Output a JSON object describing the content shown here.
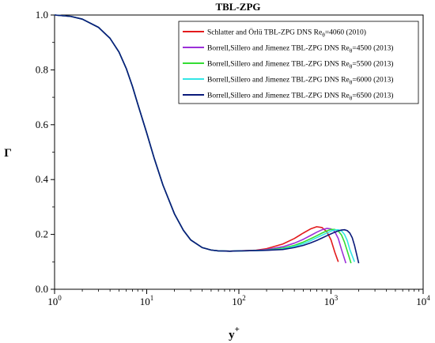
{
  "chart_data": {
    "type": "line",
    "title": "TBL-ZPG",
    "xlabel": "y",
    "xlabel_sup": "+",
    "ylabel": "Γ",
    "xscale": "log",
    "xlim": [
      1,
      10000
    ],
    "ylim": [
      0.0,
      1.0
    ],
    "x_tick_labels": [
      {
        "base": "10",
        "exp": "0"
      },
      {
        "base": "10",
        "exp": "1"
      },
      {
        "base": "10",
        "exp": "2"
      },
      {
        "base": "10",
        "exp": "3"
      },
      {
        "base": "10",
        "exp": "4"
      }
    ],
    "y_tick_labels": [
      "0.0",
      "0.2",
      "0.4",
      "0.6",
      "0.8",
      "1.0"
    ],
    "legend_position": "top-right",
    "series": [
      {
        "name": "Schlatter and Örlü TBL-ZPG DNS Re",
        "subscript": "θ",
        "name_suffix": "=4060 (2010)",
        "color": "#e31a1c",
        "x": [
          1,
          1.5,
          2,
          3,
          4,
          5,
          6,
          7,
          8,
          10,
          12,
          15,
          20,
          25,
          30,
          40,
          50,
          60,
          80,
          100,
          150,
          200,
          300,
          400,
          500,
          600,
          700,
          800,
          900,
          1000,
          1100,
          1200
        ],
        "y": [
          1.0,
          0.995,
          0.985,
          0.955,
          0.915,
          0.865,
          0.805,
          0.74,
          0.675,
          0.57,
          0.48,
          0.38,
          0.275,
          0.215,
          0.18,
          0.152,
          0.143,
          0.14,
          0.139,
          0.14,
          0.142,
          0.148,
          0.165,
          0.185,
          0.205,
          0.22,
          0.228,
          0.225,
          0.21,
          0.18,
          0.135,
          0.1
        ]
      },
      {
        "name": "Borrell,Sillero and Jimenez TBL-ZPG DNS Re",
        "subscript": "θ",
        "name_suffix": "=4500 (2013)",
        "color": "#9b30d9",
        "x": [
          1,
          1.5,
          2,
          3,
          4,
          5,
          6,
          7,
          8,
          10,
          12,
          15,
          20,
          25,
          30,
          40,
          50,
          60,
          80,
          100,
          150,
          200,
          300,
          400,
          500,
          600,
          700,
          800,
          900,
          1000,
          1100,
          1200,
          1300,
          1450
        ],
        "y": [
          1.0,
          0.995,
          0.985,
          0.955,
          0.915,
          0.865,
          0.805,
          0.74,
          0.675,
          0.57,
          0.48,
          0.38,
          0.275,
          0.215,
          0.18,
          0.152,
          0.143,
          0.14,
          0.139,
          0.14,
          0.141,
          0.145,
          0.155,
          0.168,
          0.182,
          0.196,
          0.208,
          0.217,
          0.222,
          0.22,
          0.21,
          0.185,
          0.145,
          0.095
        ]
      },
      {
        "name": "Borrell,Sillero and Jimenez TBL-ZPG DNS Re",
        "subscript": "θ",
        "name_suffix": "=5500 (2013)",
        "color": "#33dd33",
        "x": [
          1,
          1.5,
          2,
          3,
          4,
          5,
          6,
          7,
          8,
          10,
          12,
          15,
          20,
          25,
          30,
          40,
          50,
          60,
          80,
          100,
          150,
          200,
          300,
          400,
          500,
          600,
          700,
          800,
          900,
          1000,
          1100,
          1200,
          1300,
          1400,
          1500,
          1650
        ],
        "y": [
          1.0,
          0.995,
          0.985,
          0.955,
          0.915,
          0.865,
          0.805,
          0.74,
          0.675,
          0.57,
          0.48,
          0.38,
          0.275,
          0.215,
          0.18,
          0.152,
          0.143,
          0.14,
          0.139,
          0.14,
          0.141,
          0.143,
          0.15,
          0.16,
          0.172,
          0.184,
          0.195,
          0.205,
          0.213,
          0.218,
          0.218,
          0.212,
          0.198,
          0.172,
          0.14,
          0.095
        ]
      },
      {
        "name": "Borrell,Sillero and Jimenez TBL-ZPG DNS Re",
        "subscript": "θ",
        "name_suffix": "=6000 (2013)",
        "color": "#33e6e6",
        "x": [
          1,
          1.5,
          2,
          3,
          4,
          5,
          6,
          7,
          8,
          10,
          12,
          15,
          20,
          25,
          30,
          40,
          50,
          60,
          80,
          100,
          150,
          200,
          300,
          400,
          500,
          600,
          700,
          800,
          900,
          1000,
          1100,
          1200,
          1300,
          1400,
          1500,
          1600,
          1800
        ],
        "y": [
          1.0,
          0.995,
          0.985,
          0.955,
          0.915,
          0.865,
          0.805,
          0.74,
          0.675,
          0.57,
          0.48,
          0.38,
          0.275,
          0.215,
          0.18,
          0.152,
          0.143,
          0.14,
          0.139,
          0.14,
          0.141,
          0.142,
          0.147,
          0.156,
          0.166,
          0.177,
          0.188,
          0.197,
          0.205,
          0.212,
          0.216,
          0.217,
          0.213,
          0.2,
          0.178,
          0.145,
          0.1
        ]
      },
      {
        "name": "Borrell,Sillero and Jimenez TBL-ZPG DNS Re",
        "subscript": "θ",
        "name_suffix": "=6500 (2013)",
        "color": "#0a1a7a",
        "x": [
          1,
          1.5,
          2,
          3,
          4,
          5,
          6,
          7,
          8,
          10,
          12,
          15,
          20,
          25,
          30,
          40,
          50,
          60,
          80,
          100,
          150,
          200,
          300,
          400,
          500,
          600,
          700,
          800,
          900,
          1000,
          1100,
          1200,
          1300,
          1400,
          1500,
          1600,
          1700,
          1800,
          2000
        ],
        "y": [
          1.0,
          0.995,
          0.985,
          0.955,
          0.915,
          0.865,
          0.805,
          0.74,
          0.675,
          0.57,
          0.48,
          0.38,
          0.275,
          0.215,
          0.18,
          0.152,
          0.143,
          0.14,
          0.139,
          0.14,
          0.141,
          0.142,
          0.145,
          0.152,
          0.16,
          0.169,
          0.178,
          0.187,
          0.195,
          0.202,
          0.208,
          0.213,
          0.216,
          0.217,
          0.214,
          0.205,
          0.188,
          0.16,
          0.095
        ]
      }
    ]
  }
}
